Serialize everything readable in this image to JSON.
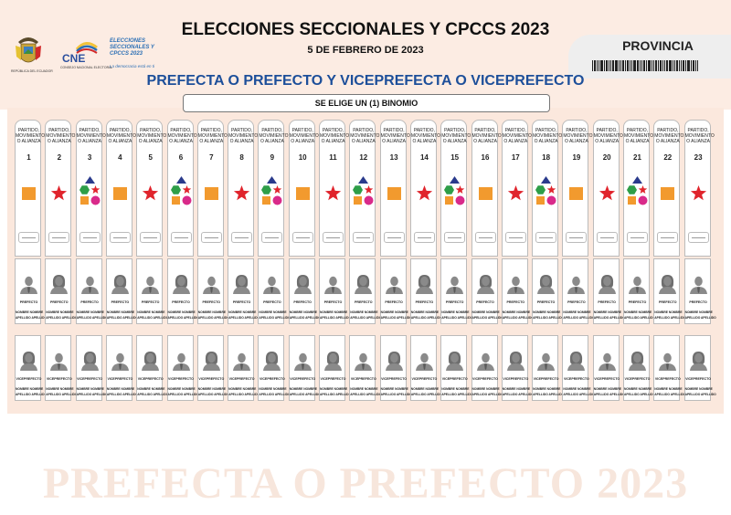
{
  "header": {
    "title": "ELECCIONES SECCIONALES Y CPCCS 2023",
    "date": "5 DE FEBRERO DE 2023",
    "subtitle": "PREFECTA O PREFECTO Y VICEPREFECTA O VICEPREFECTO",
    "instruction": "SE ELIGE UN (1) BINOMIO",
    "province_label": "PROVINCIA"
  },
  "logos": {
    "seal_caption": "REPÚBLICA DEL ECUADOR",
    "cne_name": "CNE",
    "cne_caption": "CONSEJO NACIONAL ELECTORAL",
    "elections_logo_text": "ELECCIONES SECCIONALES Y CPCCS 2023",
    "tagline": "La democracia está en ti"
  },
  "watermark": "PREFECTA O PREFECTO 2023",
  "columns": {
    "party_label": "PARTIDO, MOVIMIENTO O ALIANZA",
    "prefect_role": "PREFECTO",
    "vice_role": "VICEPREFECTO",
    "name_line1": "NOMBRE NOMBRE",
    "name_line2": "APELLIDO APELLIDO",
    "items": [
      {
        "number": "1",
        "symbol": "square",
        "prefect": "male",
        "vice": "female"
      },
      {
        "number": "2",
        "symbol": "star",
        "prefect": "female",
        "vice": "male"
      },
      {
        "number": "3",
        "symbol": "alliance",
        "prefect": "male",
        "vice": "female"
      },
      {
        "number": "4",
        "symbol": "square",
        "prefect": "female",
        "vice": "male"
      },
      {
        "number": "5",
        "symbol": "star",
        "prefect": "male",
        "vice": "female"
      },
      {
        "number": "6",
        "symbol": "alliance",
        "prefect": "female",
        "vice": "male"
      },
      {
        "number": "7",
        "symbol": "square",
        "prefect": "male",
        "vice": "female"
      },
      {
        "number": "8",
        "symbol": "star",
        "prefect": "female",
        "vice": "male"
      },
      {
        "number": "9",
        "symbol": "alliance",
        "prefect": "male",
        "vice": "female"
      },
      {
        "number": "10",
        "symbol": "square",
        "prefect": "female",
        "vice": "male"
      },
      {
        "number": "11",
        "symbol": "star",
        "prefect": "male",
        "vice": "female"
      },
      {
        "number": "12",
        "symbol": "alliance",
        "prefect": "female",
        "vice": "male"
      },
      {
        "number": "13",
        "symbol": "square",
        "prefect": "male",
        "vice": "female"
      },
      {
        "number": "14",
        "symbol": "star",
        "prefect": "female",
        "vice": "male"
      },
      {
        "number": "15",
        "symbol": "alliance",
        "prefect": "male",
        "vice": "female"
      },
      {
        "number": "16",
        "symbol": "square",
        "prefect": "female",
        "vice": "male"
      },
      {
        "number": "17",
        "symbol": "star",
        "prefect": "male",
        "vice": "female"
      },
      {
        "number": "18",
        "symbol": "alliance",
        "prefect": "female",
        "vice": "male"
      },
      {
        "number": "19",
        "symbol": "square",
        "prefect": "male",
        "vice": "female"
      },
      {
        "number": "20",
        "symbol": "star",
        "prefect": "female",
        "vice": "male"
      },
      {
        "number": "21",
        "symbol": "alliance",
        "prefect": "male",
        "vice": "female"
      },
      {
        "number": "22",
        "symbol": "square",
        "prefect": "female",
        "vice": "male"
      },
      {
        "number": "23",
        "symbol": "star",
        "prefect": "male",
        "vice": "female"
      }
    ]
  },
  "colors": {
    "subtitle_blue": "#1d4f9a",
    "square_orange": "#f29a2e",
    "star_red": "#e0242c",
    "triangle_navy": "#2a3a8c",
    "hexagon_green": "#2e9e48",
    "circle_magenta": "#d92a8a",
    "photo_gray": "#8a8a8a"
  }
}
